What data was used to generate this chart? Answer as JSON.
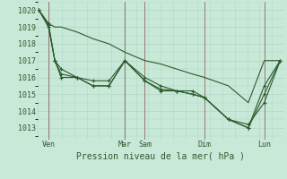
{
  "background_color": "#c8e8d8",
  "grid_color": "#b0d8c8",
  "line_color": "#2d5a2d",
  "marker_color": "#2d5a2d",
  "ylabel_ticks": [
    1013,
    1014,
    1015,
    1016,
    1017,
    1018,
    1019,
    1020
  ],
  "ylim": [
    1012.3,
    1020.5
  ],
  "xlabel": "Pression niveau de la mer( hPa )",
  "day_labels": [
    "Ven",
    "Mar",
    "Sam",
    "Dim",
    "Lun"
  ],
  "day_positions": [
    14,
    110,
    135,
    210,
    285
  ],
  "vline_positions": [
    14,
    110,
    135,
    210,
    285
  ],
  "vline_color": "#996666",
  "xlim": [
    0,
    310
  ],
  "series": [
    {
      "x": [
        2,
        14,
        22,
        30,
        50,
        70,
        90,
        110,
        135,
        155,
        175,
        195,
        210,
        240,
        265,
        285,
        305
      ],
      "y": [
        1020.0,
        1019.2,
        1019.0,
        1019.0,
        1018.7,
        1018.3,
        1018.0,
        1017.5,
        1017.0,
        1016.8,
        1016.5,
        1016.2,
        1016.0,
        1015.5,
        1014.5,
        1017.0,
        1017.0
      ],
      "style": "line_only"
    },
    {
      "x": [
        2,
        14,
        22,
        30,
        50,
        70,
        90,
        110,
        135,
        155,
        175,
        195,
        210,
        240,
        265,
        285,
        305
      ],
      "y": [
        1020.0,
        1019.2,
        1017.0,
        1016.0,
        1016.0,
        1015.8,
        1015.8,
        1017.0,
        1016.0,
        1015.5,
        1015.2,
        1015.2,
        1014.8,
        1013.5,
        1013.0,
        1015.0,
        1017.0
      ],
      "style": "line_marker"
    },
    {
      "x": [
        2,
        14,
        22,
        30,
        50,
        70,
        90,
        110,
        135,
        155,
        175,
        195,
        210,
        240,
        265,
        285,
        305
      ],
      "y": [
        1020.0,
        1019.1,
        1017.0,
        1016.2,
        1016.0,
        1015.5,
        1015.5,
        1017.0,
        1015.8,
        1015.2,
        1015.2,
        1015.0,
        1014.8,
        1013.5,
        1013.2,
        1014.5,
        1017.0
      ],
      "style": "line_marker"
    },
    {
      "x": [
        2,
        14,
        22,
        30,
        50,
        70,
        90,
        110,
        135,
        155,
        175,
        195,
        210,
        240,
        265,
        285,
        305
      ],
      "y": [
        1020.0,
        1019.0,
        1017.0,
        1016.5,
        1016.0,
        1015.5,
        1015.5,
        1017.0,
        1015.8,
        1015.3,
        1015.2,
        1015.0,
        1014.8,
        1013.5,
        1013.0,
        1015.5,
        1017.0
      ],
      "style": "line_marker"
    }
  ],
  "tick_fontsize": 6,
  "xlabel_fontsize": 7
}
